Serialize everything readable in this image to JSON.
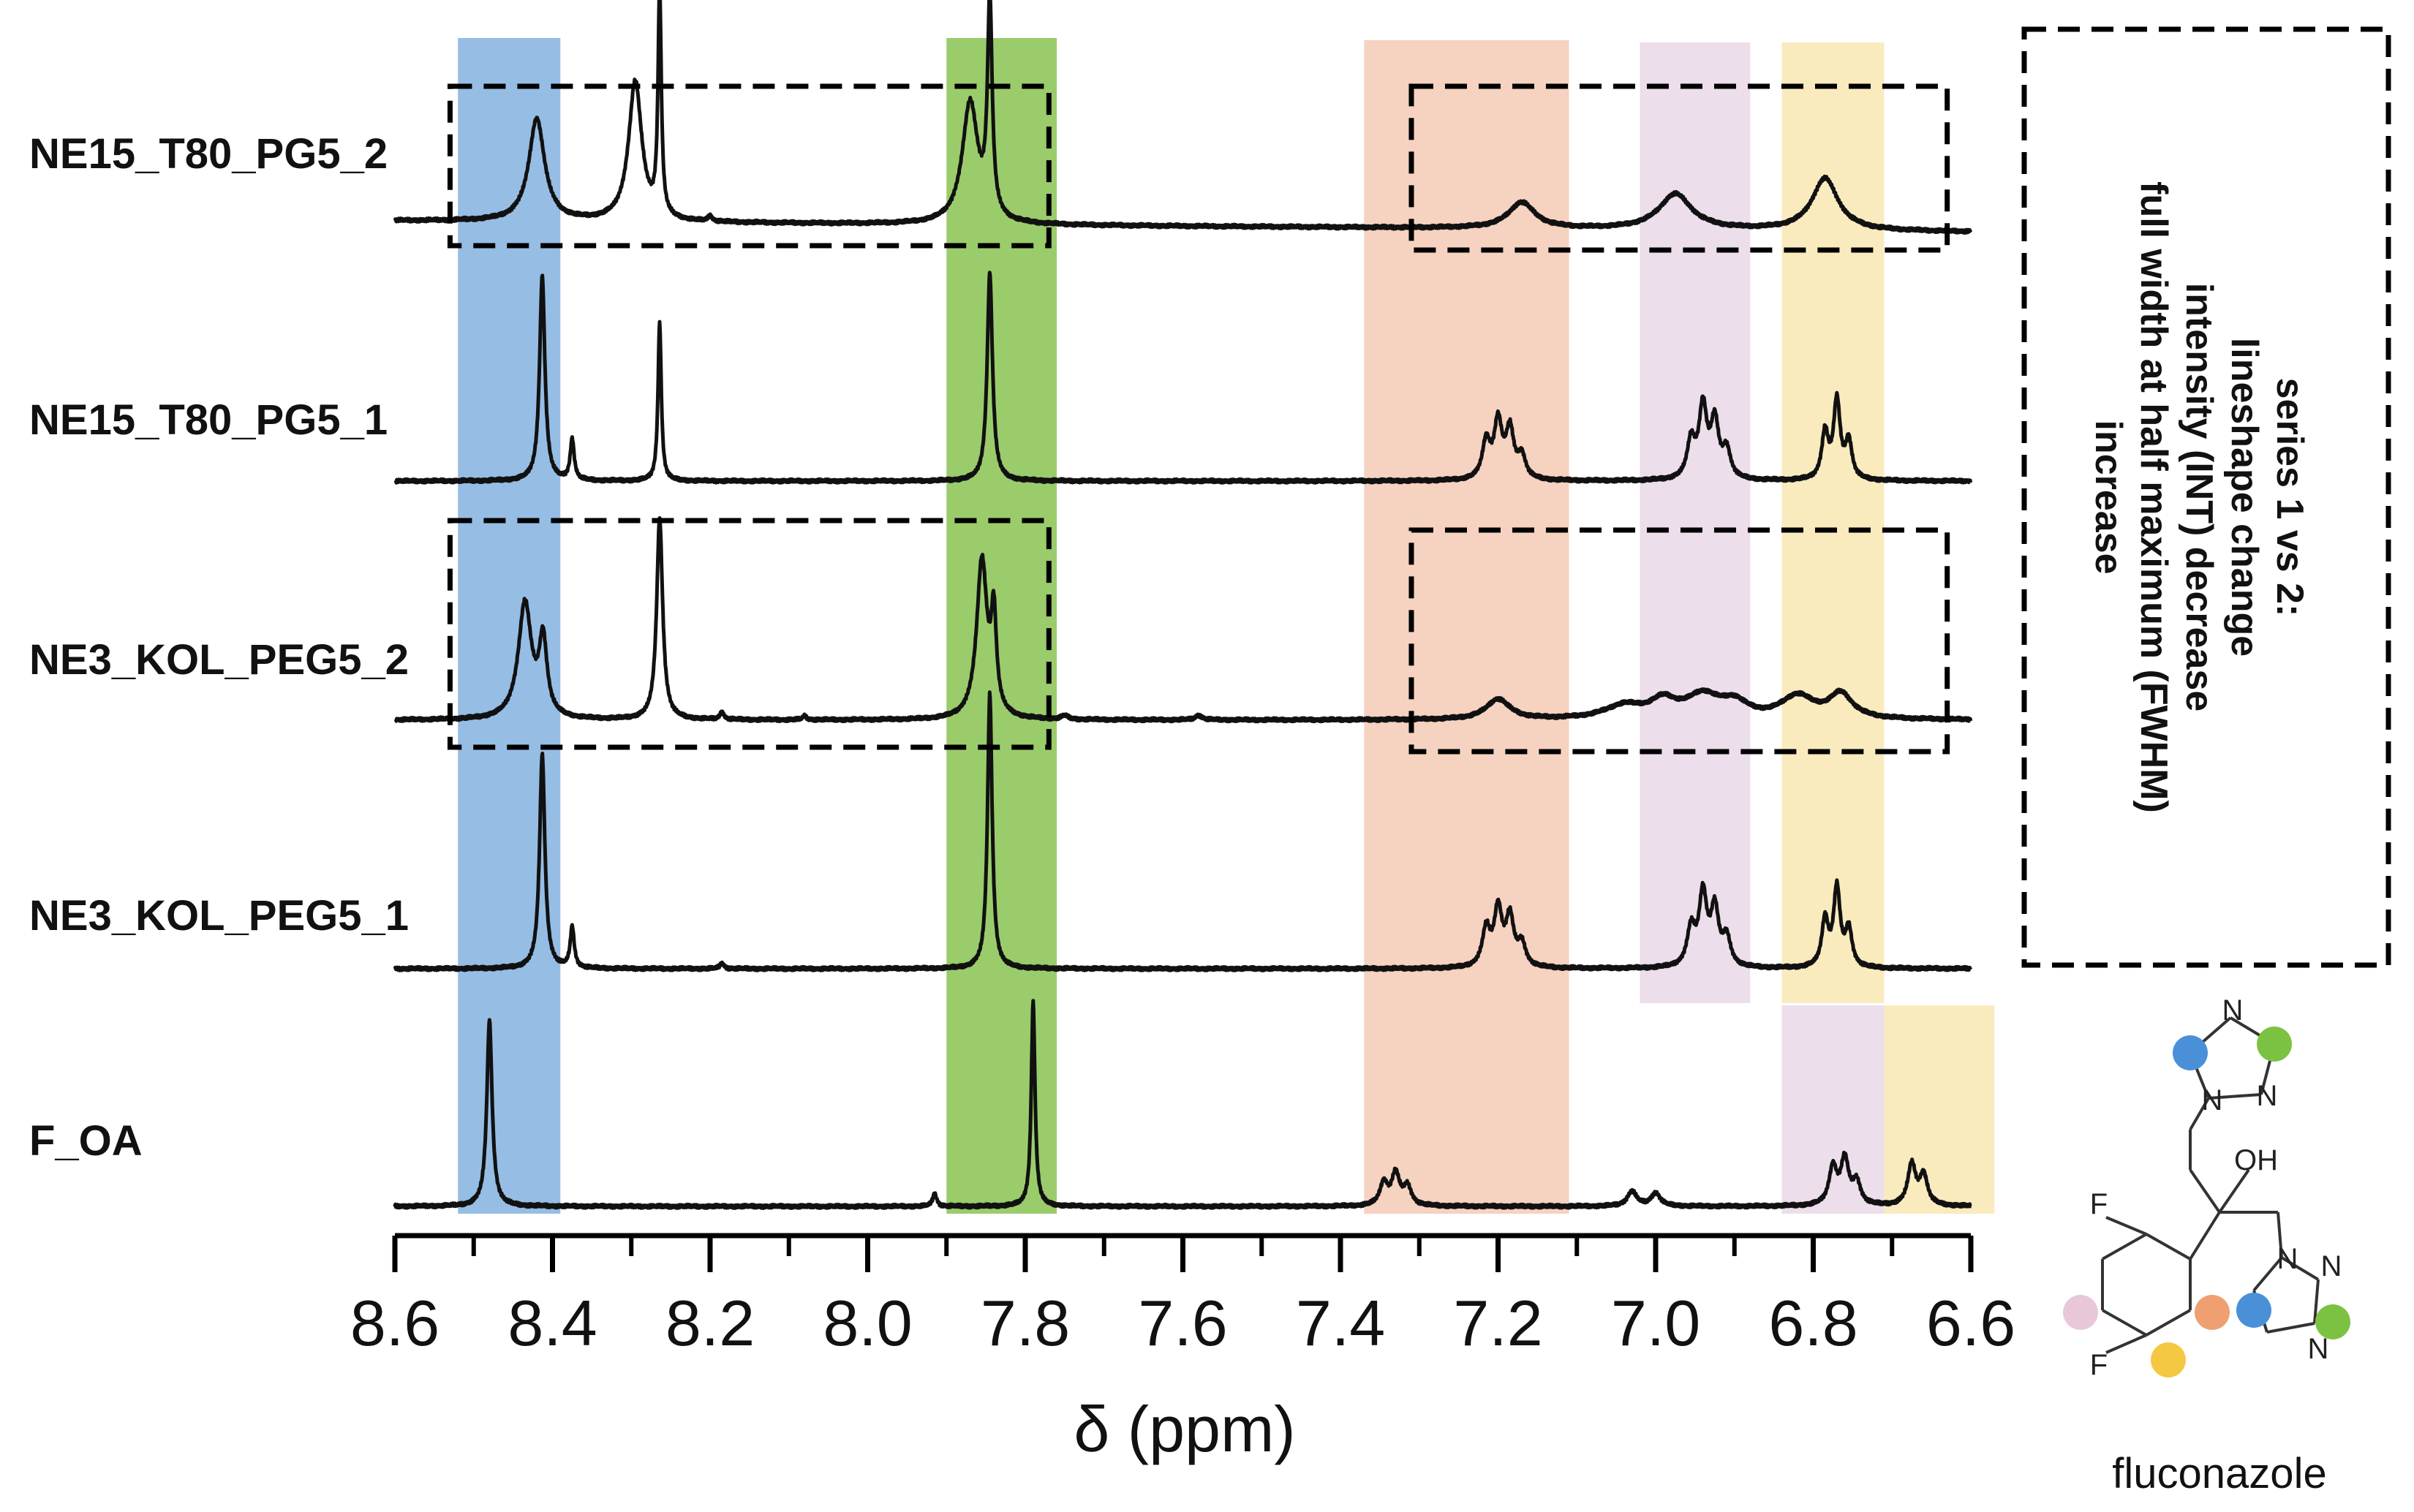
{
  "chart_data": {
    "type": "line",
    "subtype": "stacked 1H NMR spectra",
    "xlabel": "δ (ppm)",
    "xlim": [
      8.6,
      6.6
    ],
    "x_reversed": true,
    "x_ticks": [
      "8.6",
      "8.4",
      "8.2",
      "8.0",
      "7.8",
      "7.6",
      "7.4",
      "7.2",
      "7.0",
      "6.8",
      "6.6"
    ],
    "grid": false,
    "highlight_bands": [
      {
        "name": "triazole-H-blue",
        "color": "#8db7e2",
        "ppm_range": [
          8.52,
          8.39
        ],
        "spectra": "all"
      },
      {
        "name": "triazole-H-green",
        "color": "#93c85e",
        "ppm_range": [
          7.9,
          7.76
        ],
        "spectra": "all"
      },
      {
        "name": "aromatic-H-orange",
        "color": "#f6d2c0",
        "ppm_range": [
          7.37,
          7.11
        ],
        "spectra": "all"
      },
      {
        "name": "aromatic-H-lavender",
        "color": "#ecdeea",
        "ppm_range": [
          7.02,
          6.88
        ],
        "spectra": "NE top four"
      },
      {
        "name": "aromatic-H-lavender-FOA",
        "color": "#ecdeea",
        "ppm_range": [
          6.84,
          6.71
        ],
        "spectra": "F_OA"
      },
      {
        "name": "aromatic-H-yellow",
        "color": "#faebbf",
        "ppm_range": [
          6.84,
          6.71
        ],
        "spectra": "NE top four"
      },
      {
        "name": "aromatic-H-yellow-FOA",
        "color": "#faebbf",
        "ppm_range": [
          6.71,
          6.57
        ],
        "spectra": "F_OA"
      }
    ],
    "series": [
      {
        "name": "NE15_T80_PG5_2",
        "peaks": [
          {
            "ppm": 8.42,
            "height": 0.55,
            "width": 0.012
          },
          {
            "ppm": 8.295,
            "height": 0.75,
            "width": 0.01
          },
          {
            "ppm": 8.264,
            "height": 1.2,
            "width": 0.0025
          },
          {
            "ppm": 8.2,
            "height": 0.03,
            "width": 0.003
          },
          {
            "ppm": 7.87,
            "height": 0.65,
            "width": 0.012
          },
          {
            "ppm": 7.845,
            "height": 1.15,
            "width": 0.0035
          },
          {
            "ppm": 7.17,
            "height": 0.14,
            "width": 0.02
          },
          {
            "ppm": 6.975,
            "height": 0.19,
            "width": 0.025
          },
          {
            "ppm": 6.785,
            "height": 0.28,
            "width": 0.02
          }
        ]
      },
      {
        "name": "NE15_T80_PG5_1",
        "peaks": [
          {
            "ppm": 8.413,
            "height": 1.1,
            "width": 0.004
          },
          {
            "ppm": 8.375,
            "height": 0.22,
            "width": 0.003
          },
          {
            "ppm": 8.264,
            "height": 0.85,
            "width": 0.0025
          },
          {
            "ppm": 7.845,
            "height": 1.12,
            "width": 0.004
          },
          {
            "ppm": 7.215,
            "height": 0.2,
            "width": 0.006
          },
          {
            "ppm": 7.2,
            "height": 0.3,
            "width": 0.006
          },
          {
            "ppm": 7.185,
            "height": 0.26,
            "width": 0.006
          },
          {
            "ppm": 7.17,
            "height": 0.12,
            "width": 0.006
          },
          {
            "ppm": 6.955,
            "height": 0.2,
            "width": 0.006
          },
          {
            "ppm": 6.94,
            "height": 0.38,
            "width": 0.006
          },
          {
            "ppm": 6.925,
            "height": 0.3,
            "width": 0.006
          },
          {
            "ppm": 6.91,
            "height": 0.15,
            "width": 0.006
          },
          {
            "ppm": 6.785,
            "height": 0.25,
            "width": 0.005
          },
          {
            "ppm": 6.77,
            "height": 0.42,
            "width": 0.005
          },
          {
            "ppm": 6.755,
            "height": 0.2,
            "width": 0.005
          }
        ]
      },
      {
        "name": "NE3_KOL_PEG5_2",
        "peaks": [
          {
            "ppm": 8.435,
            "height": 0.62,
            "width": 0.01
          },
          {
            "ppm": 8.412,
            "height": 0.4,
            "width": 0.006
          },
          {
            "ppm": 8.264,
            "height": 1.08,
            "width": 0.0045
          },
          {
            "ppm": 8.185,
            "height": 0.04,
            "width": 0.003
          },
          {
            "ppm": 8.08,
            "height": 0.02,
            "width": 0.003
          },
          {
            "ppm": 7.855,
            "height": 0.85,
            "width": 0.008
          },
          {
            "ppm": 7.84,
            "height": 0.5,
            "width": 0.004
          },
          {
            "ppm": 7.75,
            "height": 0.02,
            "width": 0.005
          },
          {
            "ppm": 7.58,
            "height": 0.025,
            "width": 0.005
          },
          {
            "ppm": 7.2,
            "height": 0.11,
            "width": 0.018
          },
          {
            "ppm": 7.04,
            "height": 0.07,
            "width": 0.03
          },
          {
            "ppm": 6.99,
            "height": 0.09,
            "width": 0.02
          },
          {
            "ppm": 6.94,
            "height": 0.12,
            "width": 0.025
          },
          {
            "ppm": 6.9,
            "height": 0.08,
            "width": 0.02
          },
          {
            "ppm": 6.82,
            "height": 0.12,
            "width": 0.025
          },
          {
            "ppm": 6.765,
            "height": 0.13,
            "width": 0.018
          }
        ]
      },
      {
        "name": "NE3_KOL_PEG5_1",
        "peaks": [
          {
            "ppm": 8.413,
            "height": 1.15,
            "width": 0.004
          },
          {
            "ppm": 8.375,
            "height": 0.22,
            "width": 0.003
          },
          {
            "ppm": 8.185,
            "height": 0.03,
            "width": 0.003
          },
          {
            "ppm": 7.845,
            "height": 1.48,
            "width": 0.0035
          },
          {
            "ppm": 7.215,
            "height": 0.2,
            "width": 0.006
          },
          {
            "ppm": 7.2,
            "height": 0.3,
            "width": 0.006
          },
          {
            "ppm": 7.185,
            "height": 0.26,
            "width": 0.006
          },
          {
            "ppm": 7.17,
            "height": 0.12,
            "width": 0.006
          },
          {
            "ppm": 6.955,
            "height": 0.2,
            "width": 0.006
          },
          {
            "ppm": 6.94,
            "height": 0.38,
            "width": 0.006
          },
          {
            "ppm": 6.925,
            "height": 0.3,
            "width": 0.006
          },
          {
            "ppm": 6.91,
            "height": 0.15,
            "width": 0.006
          },
          {
            "ppm": 6.785,
            "height": 0.25,
            "width": 0.005
          },
          {
            "ppm": 6.77,
            "height": 0.42,
            "width": 0.005
          },
          {
            "ppm": 6.755,
            "height": 0.2,
            "width": 0.005
          }
        ]
      },
      {
        "name": "F_OA",
        "peaks": [
          {
            "ppm": 8.48,
            "height": 1.0,
            "width": 0.004
          },
          {
            "ppm": 7.915,
            "height": 0.07,
            "width": 0.003
          },
          {
            "ppm": 7.79,
            "height": 1.1,
            "width": 0.0028
          },
          {
            "ppm": 7.345,
            "height": 0.12,
            "width": 0.006
          },
          {
            "ppm": 7.33,
            "height": 0.17,
            "width": 0.006
          },
          {
            "ppm": 7.315,
            "height": 0.1,
            "width": 0.006
          },
          {
            "ppm": 7.03,
            "height": 0.08,
            "width": 0.007
          },
          {
            "ppm": 7.0,
            "height": 0.07,
            "width": 0.007
          },
          {
            "ppm": 6.775,
            "height": 0.2,
            "width": 0.006
          },
          {
            "ppm": 6.76,
            "height": 0.24,
            "width": 0.006
          },
          {
            "ppm": 6.745,
            "height": 0.12,
            "width": 0.006
          },
          {
            "ppm": 6.675,
            "height": 0.22,
            "width": 0.006
          },
          {
            "ppm": 6.66,
            "height": 0.16,
            "width": 0.006
          }
        ]
      }
    ],
    "annotations": {
      "comparison_boxes": [
        {
          "spectrum": "NE15_T80_PG5_2",
          "ppm_range": [
            8.53,
            7.77
          ]
        },
        {
          "spectrum": "NE15_T80_PG5_2",
          "ppm_range": [
            7.31,
            6.63
          ]
        },
        {
          "spectrum": "NE3_KOL_PEG5_2",
          "ppm_range": [
            8.53,
            7.77
          ]
        },
        {
          "spectrum": "NE3_KOL_PEG5_2",
          "ppm_range": [
            7.31,
            6.63
          ]
        }
      ],
      "note_lines": [
        "series 1 vs 2:",
        "lineshape change",
        "intensity (INT) decrease",
        "full width at half maximum (FWHM)",
        "increase"
      ]
    },
    "molecule": {
      "caption": "fluconazole",
      "atom_labels": [
        "N",
        "N",
        "N",
        "OH",
        "N",
        "N",
        "N",
        "F",
        "F"
      ],
      "dot_colors": [
        "#4a90d9",
        "#7cc242",
        "#4a90d9",
        "#7cc242",
        "#f0a070",
        "#e8c8d8",
        "#f5c842"
      ]
    }
  }
}
